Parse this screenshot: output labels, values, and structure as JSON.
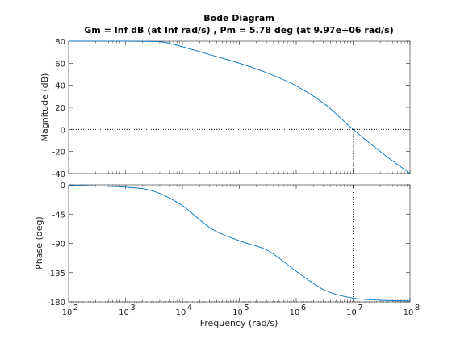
{
  "chart_data": {
    "type": "line",
    "title": "Bode Diagram",
    "subtitle": "Gm = Inf dB (at Inf rad/s) ,  Pm = 5.78 deg (at 9.97e+06 rad/s)",
    "xlabel": "Frequency  (rad/s)",
    "xscale": "log",
    "xlim": [
      100,
      100000000
    ],
    "x_ticks": [
      100,
      1000,
      10000,
      100000,
      1000000,
      10000000,
      100000000
    ],
    "x_tick_labels": [
      {
        "base": "10",
        "exp": "2"
      },
      {
        "base": "10",
        "exp": "3"
      },
      {
        "base": "10",
        "exp": "4"
      },
      {
        "base": "10",
        "exp": "5"
      },
      {
        "base": "10",
        "exp": "6"
      },
      {
        "base": "10",
        "exp": "7"
      },
      {
        "base": "10",
        "exp": "8"
      }
    ],
    "grid": false,
    "line_color": "#0072BD",
    "marker_color": "#000000",
    "magnitude": {
      "ylabel": "Magnitude (dB)",
      "ylim": [
        -40,
        80
      ],
      "y_ticks": [
        80,
        60,
        40,
        20,
        0,
        -20,
        -40
      ],
      "y_tick_labels": [
        "80",
        "60",
        "40",
        "20",
        "0",
        "-20",
        "-40"
      ],
      "x": [
        100,
        1000,
        3162,
        5000,
        10000,
        31623,
        100000,
        316228,
        1000000,
        3162278,
        10000000,
        31622777,
        100000000
      ],
      "values": [
        80,
        80,
        79.7,
        78.9,
        75,
        67.5,
        60,
        51,
        39.5,
        23,
        0,
        -21,
        -40
      ]
    },
    "phase": {
      "ylabel": "Phase (deg)",
      "ylim": [
        -180,
        0
      ],
      "y_ticks": [
        0,
        -45,
        -90,
        -135,
        -180
      ],
      "y_tick_labels": [
        "0",
        "-45",
        "-90",
        "-135",
        "-180"
      ],
      "x": [
        100,
        1000,
        3162,
        10000,
        31623,
        100000,
        316228,
        1000000,
        3162278,
        10000000,
        31622777,
        100000000
      ],
      "values": [
        -0.5,
        -3.5,
        -10,
        -32,
        -67,
        -86,
        -101,
        -133,
        -162,
        -174.2,
        -177.5,
        -178.5
      ]
    },
    "phase_margin_marker": {
      "frequency": 9970000,
      "magnitude_db": 0,
      "phase_deg": -174.22
    }
  }
}
